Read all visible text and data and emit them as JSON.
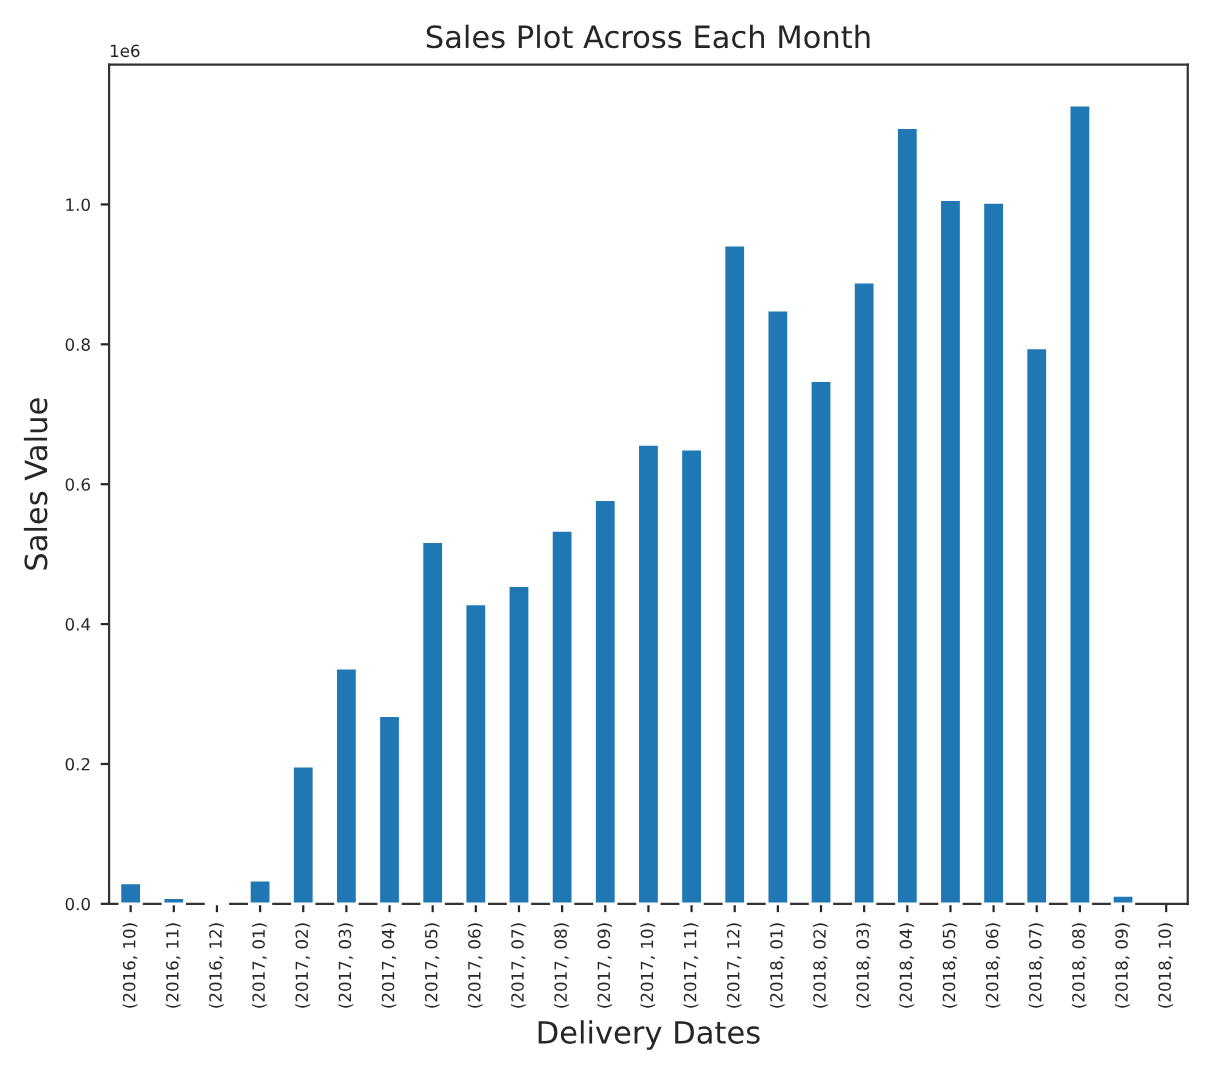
{
  "chart_data": {
    "type": "bar",
    "title": "Sales Plot Across Each Month",
    "xlabel": "Delivery Dates",
    "ylabel": "Sales Value",
    "annotations": [
      "1e6"
    ],
    "categories": [
      "(2016, 10)",
      "(2016, 11)",
      "(2016, 12)",
      "(2017, 01)",
      "(2017, 02)",
      "(2017, 03)",
      "(2017, 04)",
      "(2017, 05)",
      "(2017, 06)",
      "(2017, 07)",
      "(2017, 08)",
      "(2017, 09)",
      "(2017, 10)",
      "(2017, 11)",
      "(2017, 12)",
      "(2018, 01)",
      "(2018, 02)",
      "(2018, 03)",
      "(2018, 04)",
      "(2018, 05)",
      "(2018, 06)",
      "(2018, 07)",
      "(2018, 08)",
      "(2018, 09)",
      "(2018, 10)"
    ],
    "values": [
      0.03,
      0.009,
      0.003,
      0.034,
      0.197,
      0.337,
      0.269,
      0.518,
      0.429,
      0.455,
      0.534,
      0.578,
      0.657,
      0.65,
      0.942,
      0.849,
      0.748,
      0.889,
      1.11,
      1.007,
      1.003,
      0.795,
      1.142,
      0.012,
      null
    ],
    "color": "#1f77b4",
    "ylim": [
      0,
      1.2
    ],
    "yticks": [
      {
        "value": 0,
        "label": "0.0"
      },
      {
        "value": 0.2,
        "label": "0.2"
      },
      {
        "value": 0.4,
        "label": "0.4"
      },
      {
        "value": 0.6,
        "label": "0.6"
      },
      {
        "value": 0.8,
        "label": "0.8"
      },
      {
        "value": 1.0,
        "label": "1.0"
      }
    ],
    "grid": false,
    "legend": false
  }
}
